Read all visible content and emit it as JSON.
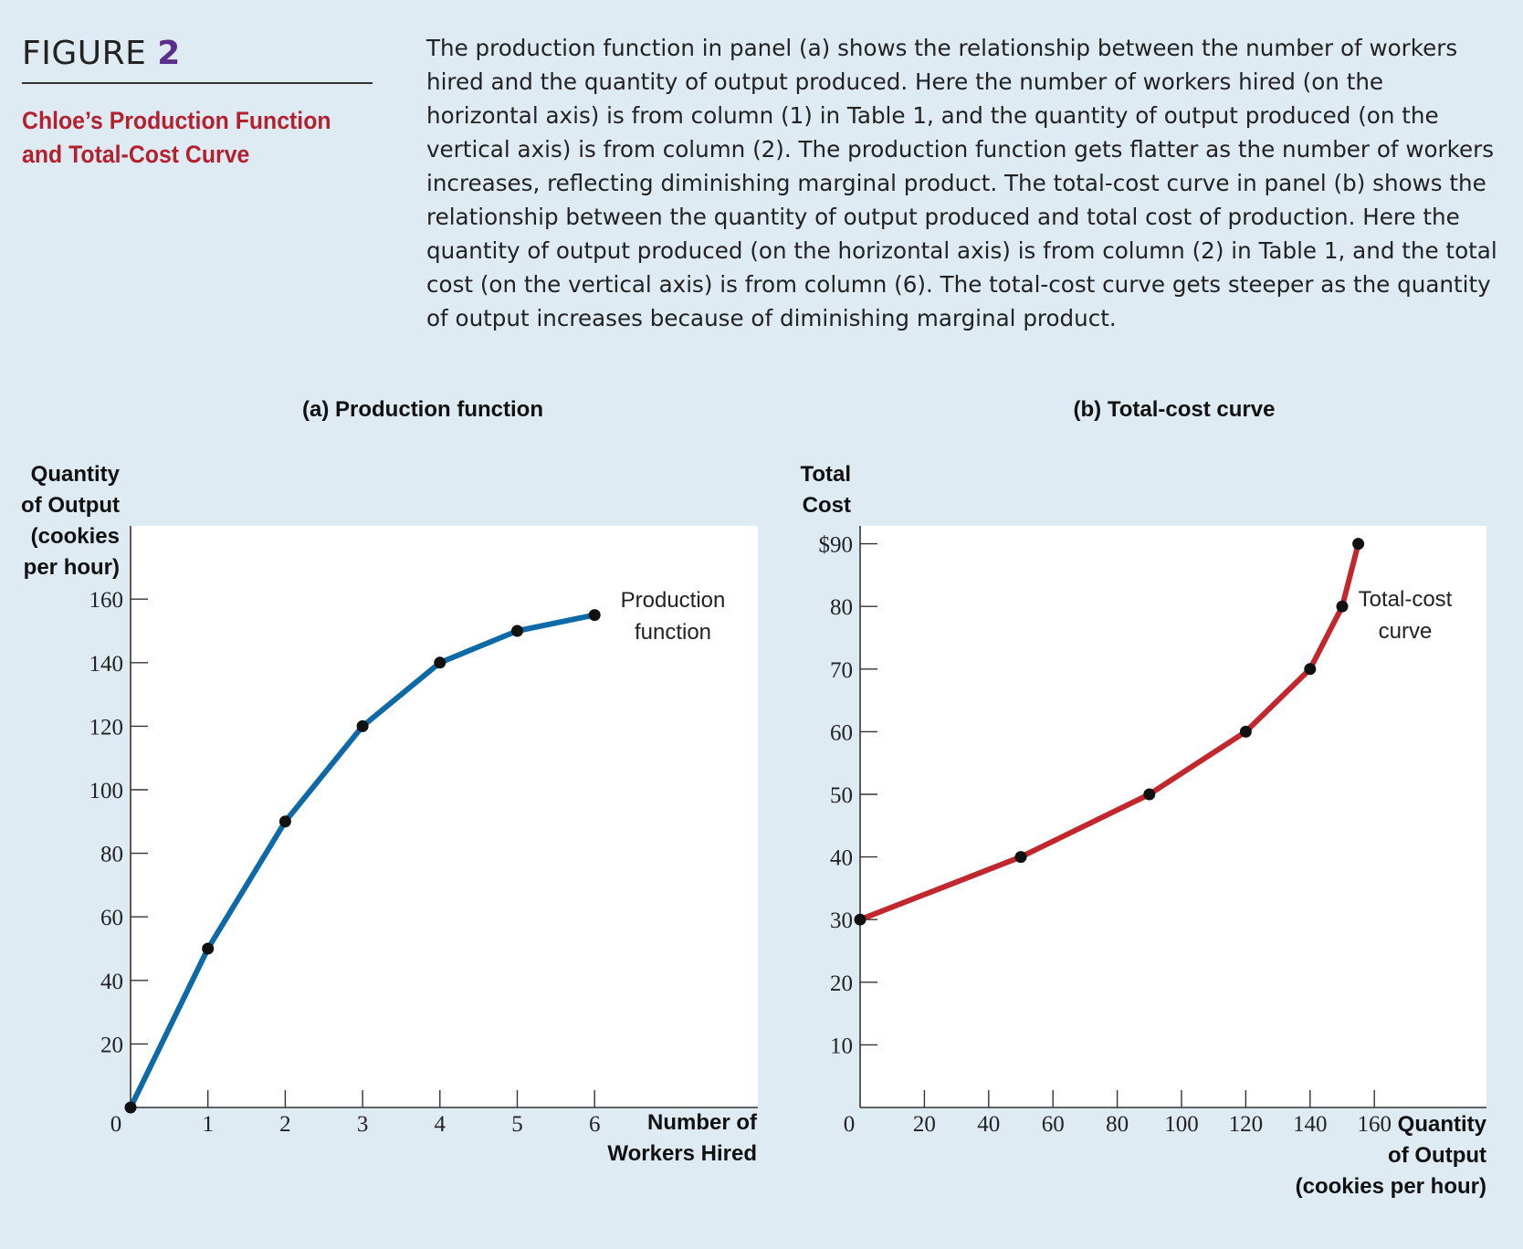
{
  "figure": {
    "label": "FIGURE",
    "number": "2",
    "title_line1": "Chloe’s Production Function",
    "title_line2": "and Total-Cost Curve",
    "caption": "The production function in panel (a) shows the relationship between the number of workers hired and the quantity of output produced. Here the number of workers hired (on the horizontal axis) is from column (1) in Table 1, and the quantity of output produced (on the vertical axis) is from column (2). The production function gets flatter as the number of workers increases, reflecting diminishing marginal product. The total-cost curve in panel (b) shows the relationship between the quantity of output produced and total cost of production. Here the quantity of output produced (on the horizontal axis) is from column (2) in Table 1, and the total cost (on the vertical axis) is from column (6). The total-cost curve gets steeper as the quantity of output increases because of diminishing marginal product."
  },
  "colors": {
    "background": "#deebf3",
    "plot_background": "#ffffff",
    "accent_purple": "#5b2d8c",
    "title_red": "#b3212f",
    "production_curve": "#0e6aa6",
    "cost_curve": "#c1272d",
    "point": "#111111"
  },
  "chart_data": [
    {
      "type": "line",
      "title": "(a) Production function",
      "xlabel": [
        "Number of",
        "Workers Hired"
      ],
      "ylabel": [
        "Quantity",
        "of Output",
        "(cookies",
        "per hour)"
      ],
      "xlim": [
        0,
        8.2
      ],
      "ylim": [
        0,
        183
      ],
      "xticks": [
        1,
        2,
        3,
        4,
        5,
        6
      ],
      "yticks": [
        20,
        40,
        60,
        80,
        100,
        120,
        140,
        160
      ],
      "ytick_labels": [
        "20",
        "40",
        "60",
        "80",
        "100",
        "120",
        "140",
        "160"
      ],
      "origin_label": "0",
      "grid": false,
      "series": [
        {
          "name": "Production function",
          "label_lines": [
            "Production",
            "function"
          ],
          "x": [
            0,
            1,
            2,
            3,
            4,
            5,
            6
          ],
          "y": [
            0,
            50,
            90,
            120,
            140,
            150,
            155
          ]
        }
      ]
    },
    {
      "type": "line",
      "title": "(b) Total-cost curve",
      "xlabel": [
        "Quantity",
        "of Output",
        "(cookies per hour)"
      ],
      "ylabel": [
        "Total",
        "Cost"
      ],
      "xlim": [
        0,
        195
      ],
      "ylim": [
        0,
        93
      ],
      "xticks": [
        20,
        40,
        60,
        80,
        100,
        120,
        140,
        160
      ],
      "yticks": [
        10,
        20,
        30,
        40,
        50,
        60,
        70,
        80,
        90
      ],
      "ytick_labels": [
        "10",
        "20",
        "30",
        "40",
        "50",
        "60",
        "70",
        "80",
        "$90"
      ],
      "origin_label": "0",
      "grid": false,
      "series": [
        {
          "name": "Total-cost curve",
          "label_lines": [
            "Total-cost",
            "curve"
          ],
          "x": [
            0,
            50,
            90,
            120,
            140,
            150,
            155
          ],
          "y": [
            30,
            40,
            50,
            60,
            70,
            80,
            90
          ]
        }
      ]
    }
  ]
}
